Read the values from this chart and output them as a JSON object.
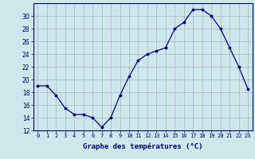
{
  "hours": [
    0,
    1,
    2,
    3,
    4,
    5,
    6,
    7,
    8,
    9,
    10,
    11,
    12,
    13,
    14,
    15,
    16,
    17,
    18,
    19,
    20,
    21,
    22,
    23
  ],
  "temps": [
    19,
    19,
    17.5,
    15.5,
    14.5,
    14.5,
    14,
    12.5,
    14,
    17.5,
    20.5,
    23,
    24,
    24.5,
    25,
    28,
    29,
    31,
    31,
    30,
    28,
    25,
    22,
    18.5
  ],
  "xlabel": "Graphe des températures (°C)",
  "ylim": [
    12,
    32
  ],
  "xlim_min": -0.5,
  "xlim_max": 23.5,
  "yticks": [
    12,
    14,
    16,
    18,
    20,
    22,
    24,
    26,
    28,
    30
  ],
  "xticks": [
    0,
    1,
    2,
    3,
    4,
    5,
    6,
    7,
    8,
    9,
    10,
    11,
    12,
    13,
    14,
    15,
    16,
    17,
    18,
    19,
    20,
    21,
    22,
    23
  ],
  "line_color": "#00008b",
  "marker_color": "#00008b",
  "bg_color": "#cce8e8",
  "grid_color": "#b0b0cc",
  "axis_color": "#00008b",
  "xlabel_color": "#00008b",
  "tick_color": "#00008b",
  "tick_fontsize": 5,
  "xlabel_fontsize": 6.5,
  "ytick_fontsize": 5.5
}
